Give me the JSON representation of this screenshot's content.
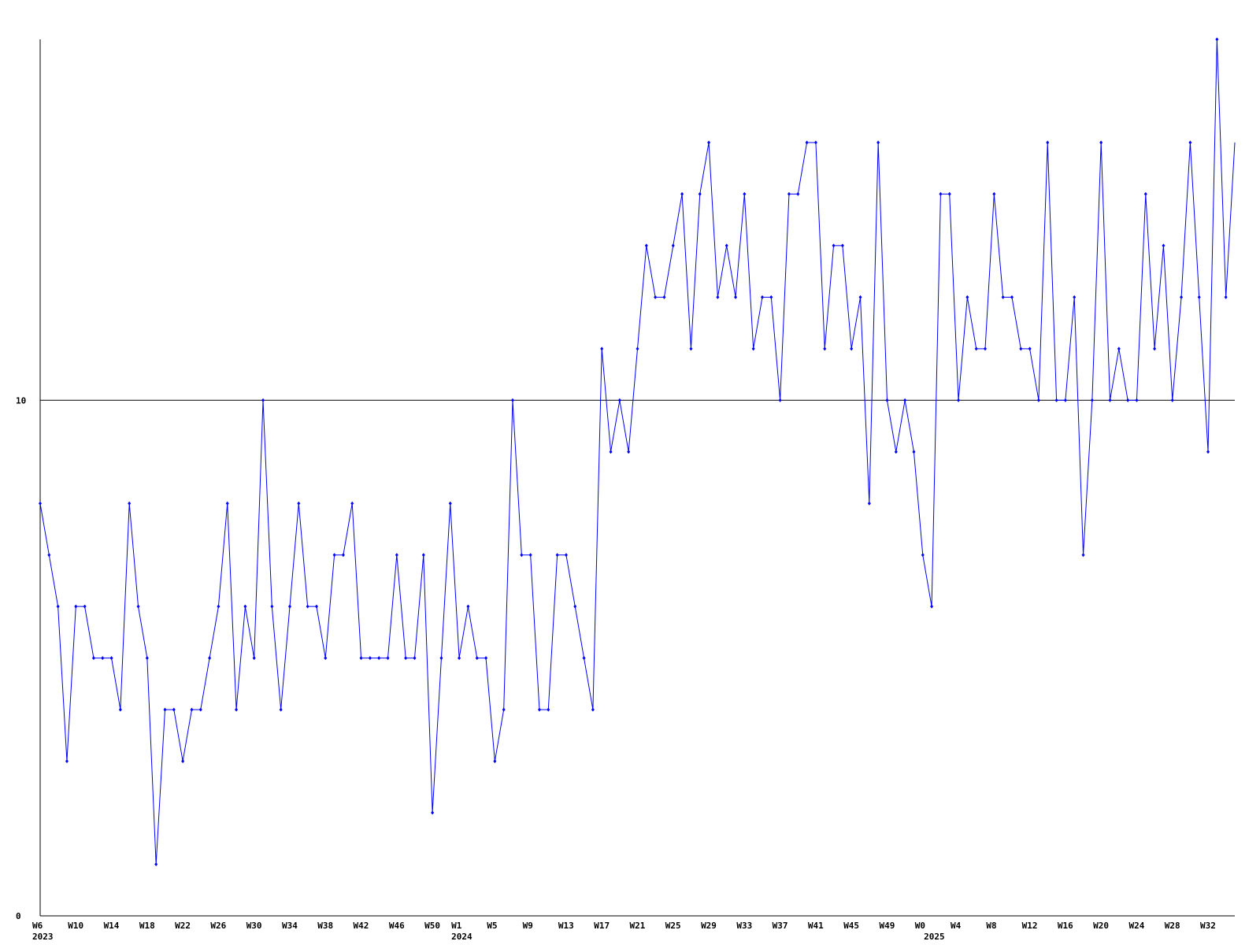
{
  "chart_data": {
    "type": "line",
    "categories": [
      "W6",
      null,
      null,
      null,
      "W10",
      null,
      null,
      null,
      "W14",
      null,
      null,
      null,
      "W18",
      null,
      null,
      null,
      "W22",
      null,
      null,
      null,
      "W26",
      null,
      null,
      null,
      "W30",
      null,
      null,
      null,
      "W34",
      null,
      null,
      null,
      "W38",
      null,
      null,
      null,
      "W42",
      null,
      null,
      null,
      "W46",
      null,
      null,
      null,
      "W50",
      null,
      null,
      "W1",
      null,
      null,
      null,
      "W5",
      null,
      null,
      null,
      "W9",
      null,
      null,
      null,
      "W13",
      null,
      null,
      null,
      "W17",
      null,
      null,
      null,
      "W21",
      null,
      null,
      null,
      "W25",
      null,
      null,
      null,
      "W29",
      null,
      null,
      null,
      "W33",
      null,
      null,
      null,
      "W37",
      null,
      null,
      null,
      "W41",
      null,
      null,
      null,
      "W45",
      null,
      null,
      null,
      "W49",
      null,
      null,
      null,
      "W0",
      null,
      null,
      null,
      "W4",
      null,
      null,
      null,
      "W8",
      null,
      null,
      null,
      "W12",
      null,
      null,
      null,
      "W16",
      null,
      null,
      null,
      "W20",
      null,
      null,
      null,
      "W24",
      null,
      null,
      null,
      "W28",
      null,
      null,
      null,
      "W32",
      null,
      null,
      null
    ],
    "year_labels": [
      "2023",
      null,
      null,
      null,
      null,
      null,
      null,
      null,
      null,
      null,
      null,
      null,
      null,
      null,
      null,
      null,
      null,
      null,
      null,
      null,
      null,
      null,
      null,
      null,
      null,
      null,
      null,
      null,
      null,
      null,
      null,
      null,
      null,
      null,
      null,
      null,
      null,
      null,
      null,
      null,
      null,
      null,
      null,
      null,
      null,
      null,
      null,
      "2024",
      null,
      null,
      null,
      null,
      null,
      null,
      null,
      null,
      null,
      null,
      null,
      null,
      null,
      null,
      null,
      null,
      null,
      null,
      null,
      null,
      null,
      null,
      null,
      null,
      null,
      null,
      null,
      null,
      null,
      null,
      null,
      null,
      null,
      null,
      null,
      null,
      null,
      null,
      null,
      null,
      null,
      null,
      null,
      null,
      null,
      null,
      null,
      null,
      null,
      null,
      null,
      null,
      "2025",
      null,
      null,
      null,
      null,
      null,
      null,
      null,
      null,
      null,
      null,
      null,
      null,
      null,
      null,
      null,
      null,
      null,
      null,
      null,
      null,
      null,
      null,
      null,
      null,
      null,
      null,
      null,
      null,
      null,
      null,
      null,
      null,
      null,
      null,
      null
    ],
    "series": [
      {
        "color": "#0000ff",
        "values": [
          8,
          7,
          6,
          3,
          6,
          6,
          5,
          5,
          5,
          4,
          8,
          6,
          5,
          1,
          4,
          4,
          3,
          4,
          4,
          5,
          6,
          8,
          4,
          6,
          5,
          10,
          6,
          4,
          6,
          8,
          6,
          6,
          5,
          7,
          7,
          8,
          5,
          5,
          5,
          5,
          7,
          5,
          5,
          7,
          2,
          5,
          8,
          5,
          6,
          5,
          5,
          3,
          4,
          10,
          7,
          7,
          4,
          4,
          7,
          7,
          6,
          5,
          4,
          11,
          9,
          10,
          9,
          11,
          13,
          12,
          12,
          13,
          14,
          11,
          14,
          15,
          12,
          13,
          12,
          14,
          11,
          12,
          12,
          10,
          14,
          14,
          15,
          15,
          11,
          13,
          13,
          11,
          12,
          8,
          15,
          10,
          9,
          10,
          9,
          7,
          6,
          14,
          14,
          10,
          12,
          11,
          11,
          14,
          12,
          12,
          11,
          11,
          10,
          15,
          10,
          10,
          12,
          7,
          10,
          15,
          10,
          11,
          10,
          10,
          14,
          11,
          13,
          10,
          12,
          15,
          12,
          9,
          17,
          12,
          15
        ]
      }
    ],
    "ylim": [
      0,
      17
    ],
    "yticks": [
      0,
      10
    ],
    "grid": true
  }
}
